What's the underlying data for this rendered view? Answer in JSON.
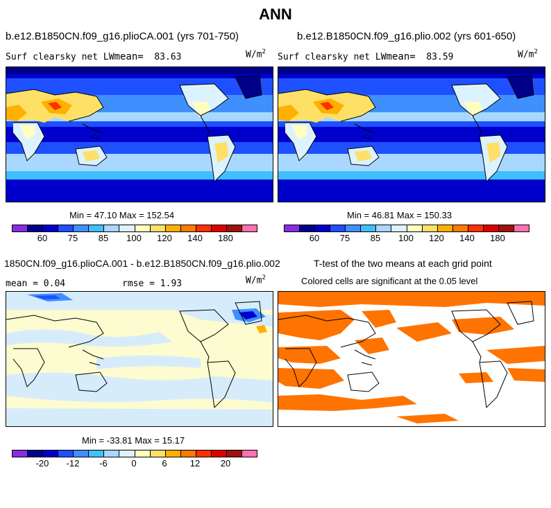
{
  "title": "ANN",
  "panels": {
    "top_left": {
      "case": "b.e12.B1850CN.f09_g16.plioCA.001 (yrs 701-750)",
      "var": "Surf clearsky net LW",
      "mean_label": "mean=",
      "mean_value": "83.63",
      "units": "W/m",
      "units_exp": "2",
      "minmax": "Min =  47.10 Max = 152.54"
    },
    "top_right": {
      "case": "b.e12.B1850CN.f09_g16.plio.002 (yrs 601-650)",
      "var": "Surf clearsky net LW",
      "mean_label": "mean=",
      "mean_value": "83.59",
      "units": "W/m",
      "units_exp": "2",
      "minmax": "Min =  46.81 Max = 150.33"
    },
    "bottom_left": {
      "case": "1850CN.f09_g16.plioCA.001 - b.e12.B1850CN.f09_g16.plio.002",
      "mean_text": "mean =   0.04",
      "rmse_text": "rmse =   1.93",
      "units": "W/m",
      "units_exp": "2",
      "minmax": "Min = -33.81 Max =  15.17"
    },
    "bottom_right": {
      "case": "T-test of the two means at each grid point",
      "subtitle": "Colored cells are significant at the 0.05 level"
    }
  },
  "colorbar_abs": {
    "colors": [
      "#8a2be2",
      "#00008b",
      "#0000cd",
      "#1e50ff",
      "#3f8fff",
      "#3fbfff",
      "#a8d8ff",
      "#ddf2ff",
      "#ffffc0",
      "#ffe066",
      "#ffb000",
      "#ff7a00",
      "#ff3000",
      "#e00000",
      "#a01010",
      "#ff70b0"
    ],
    "labels": [
      "60",
      "75",
      "85",
      "100",
      "120",
      "140",
      "180"
    ]
  },
  "colorbar_diff": {
    "colors": [
      "#8a2be2",
      "#00008b",
      "#0000cd",
      "#1e50ff",
      "#3f8fff",
      "#3fbfff",
      "#a8d8ff",
      "#ddf2ff",
      "#ffffc0",
      "#ffe066",
      "#ffb000",
      "#ff7a00",
      "#ff3000",
      "#e00000",
      "#a01010",
      "#ff70b0"
    ],
    "labels": [
      "-20",
      "-12",
      "-6",
      "0",
      "6",
      "12",
      "20"
    ]
  },
  "colors": {
    "significance": "#ff7300",
    "diff_base": "#fdfbd0",
    "diff_neg": "#d6ecfb"
  }
}
